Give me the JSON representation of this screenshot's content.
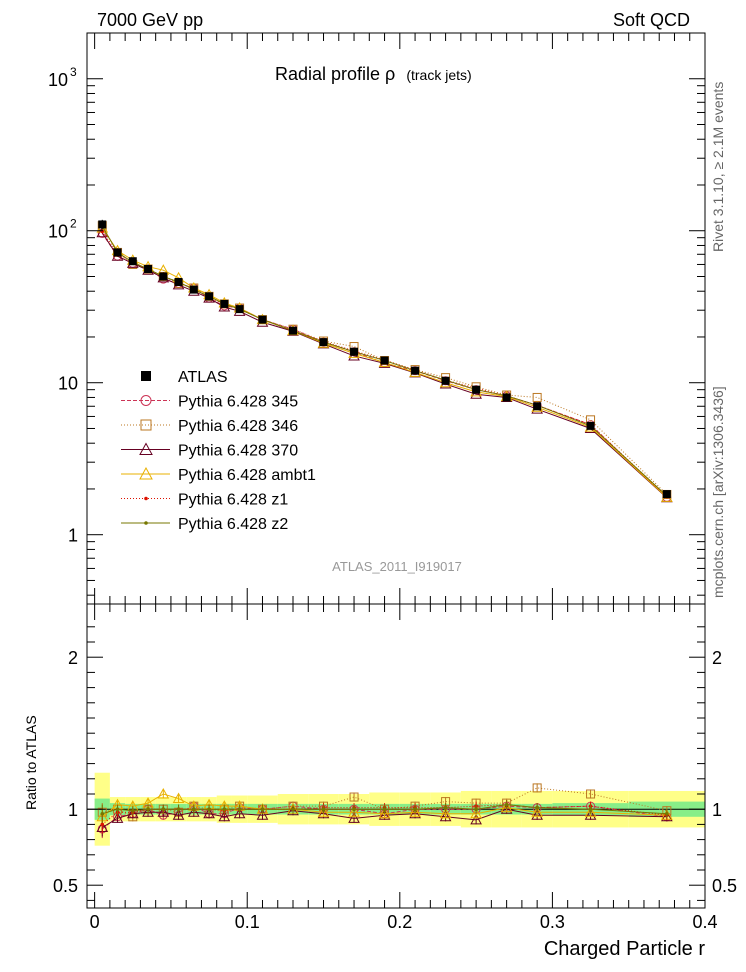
{
  "header": {
    "left": "7000 GeV pp",
    "right": "Soft QCD"
  },
  "side_labels": {
    "rivet": "Rivet 3.1.10, ≥ 2.1M events",
    "mcplots": "mcplots.cern.ch [arXiv:1306.3436]"
  },
  "chart_data": [
    {
      "type": "line",
      "title": "Radial profile  ρ",
      "title_suffix": "(track jets)",
      "watermark": "ATLAS_2011_I919017",
      "xlabel": "",
      "ylabel": "",
      "yscale": "log",
      "ylim": [
        0.35,
        2000
      ],
      "xlim": [
        -0.005,
        0.4
      ],
      "y_ticks": [
        {
          "value": 1,
          "label": "1"
        },
        {
          "value": 10,
          "label": "10"
        },
        {
          "value": 100,
          "label": "10",
          "exp": "2"
        },
        {
          "value": 1000,
          "label": "10",
          "exp": "3"
        }
      ],
      "x": [
        0.005,
        0.015,
        0.025,
        0.035,
        0.045,
        0.055,
        0.065,
        0.075,
        0.085,
        0.095,
        0.11,
        0.13,
        0.15,
        0.17,
        0.19,
        0.21,
        0.23,
        0.25,
        0.27,
        0.29,
        0.325,
        0.375
      ],
      "data_errors": [
        8,
        4,
        3,
        3,
        3,
        2.5,
        2,
        2,
        1.5,
        1.5,
        1.2,
        1,
        0.8,
        0.7,
        0.6,
        0.5,
        0.4,
        0.4,
        0.3,
        0.3,
        0.2,
        0.08
      ],
      "series": [
        {
          "name": "ATLAS",
          "color": "#000000",
          "style": "data",
          "values": [
            110,
            72,
            63,
            56,
            50,
            46,
            41,
            37,
            33,
            30.5,
            26,
            22,
            18.5,
            16,
            14,
            12,
            10.3,
            9,
            8,
            7,
            5.2,
            1.85
          ]
        },
        {
          "name": "Pythia 6.428 345",
          "color": "#cc3355",
          "style": "open-circle",
          "dash": "4,2",
          "values": [
            96,
            68,
            61,
            56,
            48,
            45,
            42,
            36,
            32,
            31,
            26,
            22.5,
            18.5,
            16,
            13.5,
            12,
            10.3,
            9,
            8.2,
            7.1,
            5.3,
            1.76
          ]
        },
        {
          "name": "Pythia 6.428 346",
          "color": "#bb7722",
          "style": "open-square",
          "dash": "1,2",
          "values": [
            108,
            72,
            60,
            56,
            50,
            45,
            42,
            37,
            33,
            31,
            26,
            22.5,
            18.8,
            17.3,
            14,
            12.2,
            10.8,
            9.4,
            8.3,
            8,
            5.7,
            1.84
          ]
        },
        {
          "name": "Pythia 6.428 370",
          "color": "#660022",
          "style": "open-triangle",
          "dash": "",
          "values": [
            97,
            68,
            61,
            55,
            49,
            44,
            40,
            36,
            31.5,
            29.5,
            25,
            21.8,
            18,
            15,
            13.4,
            11.6,
            9.8,
            8.4,
            8,
            6.7,
            5,
            1.75
          ]
        },
        {
          "name": "Pythia 6.428 ambt1",
          "color": "#e8b000",
          "style": "open-triangle",
          "dash": "",
          "values": [
            104,
            74,
            64,
            58,
            55,
            49,
            42,
            38,
            33.5,
            31,
            26,
            22,
            18.2,
            15.6,
            13.6,
            11.7,
            10,
            8.7,
            8.1,
            6.9,
            5.1,
            1.76
          ]
        },
        {
          "name": "Pythia 6.428 z1",
          "color": "#dd1100",
          "style": "dot",
          "dash": "1,2",
          "values": [
            99,
            71,
            62,
            56,
            50,
            46,
            41,
            37,
            32.5,
            30.5,
            26,
            22,
            18.7,
            16.2,
            14.1,
            12.1,
            10.4,
            9.2,
            8.2,
            7.1,
            5.3,
            1.78
          ]
        },
        {
          "name": "Pythia 6.428 z2",
          "color": "#777700",
          "style": "dot",
          "dash": "",
          "values": [
            107,
            72,
            62,
            56,
            50,
            46,
            41,
            37,
            33,
            30.5,
            26,
            22,
            18.5,
            16,
            14,
            12,
            10.4,
            9,
            8.2,
            7.1,
            5.2,
            1.8
          ]
        }
      ],
      "legend_position": "left"
    },
    {
      "type": "line",
      "title": "",
      "xlabel": "Charged Particle r",
      "ylabel": "Ratio to ATLAS",
      "ylim": [
        0.35,
        2.35
      ],
      "xlim": [
        -0.005,
        0.4
      ],
      "y_ticks": [
        {
          "value": 0.5,
          "label": "0.5"
        },
        {
          "value": 1,
          "label": "1"
        },
        {
          "value": 2,
          "label": "2"
        }
      ],
      "x_ticks": [
        {
          "value": 0,
          "label": "0"
        },
        {
          "value": 0.1,
          "label": "0.1"
        },
        {
          "value": 0.2,
          "label": "0.2"
        },
        {
          "value": 0.3,
          "label": "0.3"
        },
        {
          "value": 0.4,
          "label": "0.4"
        }
      ],
      "band_edges": [
        0.0,
        0.01,
        0.02,
        0.03,
        0.04,
        0.05,
        0.06,
        0.07,
        0.08,
        0.09,
        0.1,
        0.12,
        0.14,
        0.16,
        0.18,
        0.2,
        0.22,
        0.24,
        0.26,
        0.28,
        0.3,
        0.35,
        0.4
      ],
      "band_stat": [
        0.07,
        0.04,
        0.035,
        0.035,
        0.035,
        0.035,
        0.035,
        0.035,
        0.035,
        0.035,
        0.035,
        0.035,
        0.035,
        0.035,
        0.035,
        0.035,
        0.035,
        0.035,
        0.035,
        0.035,
        0.04,
        0.05
      ],
      "band_total": [
        0.24,
        0.08,
        0.08,
        0.08,
        0.08,
        0.08,
        0.08,
        0.08,
        0.09,
        0.09,
        0.09,
        0.1,
        0.1,
        0.1,
        0.11,
        0.11,
        0.11,
        0.12,
        0.12,
        0.12,
        0.12,
        0.12
      ],
      "series": [
        {
          "name": "Pythia 6.428 345",
          "values": [
            0.87,
            0.95,
            0.97,
            1.0,
            0.96,
            0.98,
            1.02,
            0.97,
            0.97,
            1.01,
            1.0,
            1.02,
            1.0,
            1.0,
            0.97,
            1.0,
            1.0,
            1.0,
            1.02,
            1.01,
            1.02,
            0.95
          ]
        },
        {
          "name": "Pythia 6.428 346",
          "values": [
            0.98,
            1.0,
            0.95,
            1.0,
            1.0,
            0.98,
            1.02,
            1.0,
            1.0,
            1.02,
            1.0,
            1.02,
            1.02,
            1.08,
            1.0,
            1.02,
            1.05,
            1.04,
            1.04,
            1.14,
            1.1,
            0.99
          ]
        },
        {
          "name": "Pythia 6.428 370",
          "values": [
            0.88,
            0.94,
            0.97,
            0.98,
            0.98,
            0.96,
            0.98,
            0.97,
            0.95,
            0.97,
            0.96,
            0.99,
            0.97,
            0.94,
            0.96,
            0.97,
            0.95,
            0.93,
            1.0,
            0.96,
            0.96,
            0.95
          ]
        },
        {
          "name": "Pythia 6.428 ambt1",
          "values": [
            0.95,
            1.03,
            1.02,
            1.04,
            1.1,
            1.07,
            1.02,
            1.03,
            1.02,
            1.02,
            1.0,
            1.0,
            0.98,
            0.98,
            0.97,
            0.98,
            0.97,
            0.97,
            1.01,
            0.98,
            0.98,
            0.96
          ]
        },
        {
          "name": "Pythia 6.428 z1",
          "values": [
            0.9,
            0.98,
            0.98,
            1.0,
            1.0,
            1.0,
            1.0,
            1.0,
            0.99,
            1.0,
            1.0,
            1.0,
            1.01,
            1.01,
            1.01,
            1.01,
            1.01,
            1.02,
            1.03,
            1.01,
            1.02,
            0.96
          ]
        },
        {
          "name": "Pythia 6.428 z2",
          "values": [
            0.97,
            1.0,
            0.99,
            1.0,
            1.0,
            1.0,
            1.0,
            1.0,
            1.0,
            1.0,
            1.0,
            1.0,
            1.0,
            1.0,
            1.0,
            1.0,
            1.01,
            1.0,
            1.03,
            1.01,
            1.0,
            0.97
          ]
        }
      ]
    }
  ]
}
